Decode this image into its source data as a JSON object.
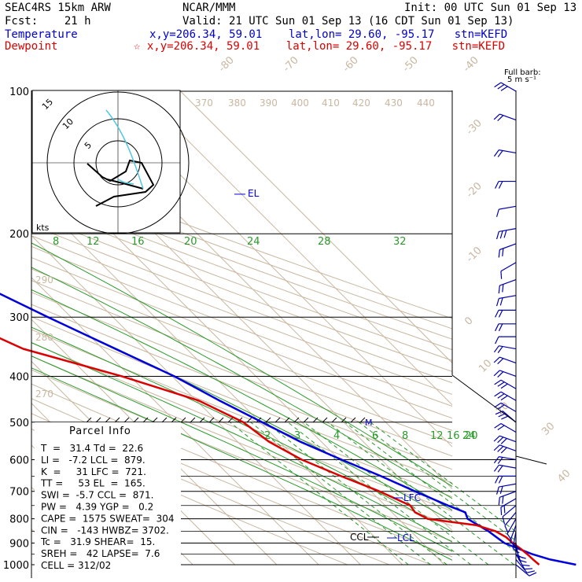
{
  "header": {
    "model": "SEAC4RS 15km ARW",
    "center": "NCAR/MMM",
    "init": "Init: 00 UTC Sun 01 Sep 13",
    "fcst": "Fcst:    21 h",
    "valid": "Valid: 21 UTC Sun 01 Sep 13 (16 CDT Sun 01 Sep 13)",
    "temperature_label": "Temperature",
    "temperature_info": "x,y=206.34, 59.01    lat,lon= 29.60, -95.17   stn=KEFD",
    "dewpoint_label": "Dewpoint",
    "dewpoint_info": "☆ x,y=206.34, 59.01    lat,lon= 29.60, -95.17   stn=KEFD"
  },
  "barb_legend": {
    "line1": "Full barb:",
    "line2": "5 m s⁻¹"
  },
  "hodograph": {
    "units": "kts",
    "ring_labels": [
      "5",
      "10",
      "15"
    ]
  },
  "parcel_info": {
    "title": "Parcel Info",
    "rows": [
      "T  =   31.4 Td =  22.6",
      "LI =   -7.2 LCL =  879.",
      "K  =     31 LFC =  721.",
      "TT =     53 EL  =  165.",
      "SWI =  -5.7 CCL =  871.",
      "PW =   4.39 YGP =   0.2",
      "CAPE =  1575 SWEAT=  304",
      "CIN =   -143 HWBZ= 3702.",
      "Tc =   31.9 SHEAR=  15.",
      "SREH =   42 LAPSE=  7.6",
      "CELL = 312/02"
    ]
  },
  "chart_data": {
    "type": "line",
    "ylabel": "",
    "pressure_ticks": [
      "100",
      "200",
      "300",
      "400",
      "500",
      "600",
      "700",
      "800",
      "900",
      "1000"
    ],
    "isotherm_labels": [
      "-80",
      "-70",
      "-60",
      "-50",
      "-40",
      "-30",
      "-20",
      "-10",
      "0",
      "10",
      "20",
      "30",
      "40"
    ],
    "theta_labels": [
      "370",
      "380",
      "390",
      "400",
      "410",
      "420",
      "430",
      "440",
      "290",
      "280",
      "270"
    ],
    "mixing_ratio_labels_upper": [
      "8",
      "12",
      "16",
      "20",
      "24",
      "28",
      "32"
    ],
    "mixing_ratio_labels_lower": [
      "2",
      "3",
      "4",
      "6",
      "8",
      "12",
      "16",
      "20",
      "24"
    ],
    "annotations": [
      "EL",
      "LFC",
      "CCL",
      "LCL",
      "M"
    ],
    "series": [
      {
        "name": "Temperature",
        "color": "#0000dd",
        "points": [
          [
            1000,
            31.4
          ],
          [
            975,
            26.5
          ],
          [
            950,
            23.5
          ],
          [
            925,
            21.5
          ],
          [
            900,
            19.5
          ],
          [
            850,
            18.5
          ],
          [
            800,
            16.5
          ],
          [
            775,
            17.5
          ],
          [
            750,
            15.0
          ],
          [
            700,
            10.5
          ],
          [
            650,
            6.0
          ],
          [
            600,
            0.5
          ],
          [
            550,
            -5.0
          ],
          [
            500,
            -9.5
          ],
          [
            450,
            -14.5
          ],
          [
            400,
            -19.5
          ],
          [
            350,
            -27.0
          ],
          [
            300,
            -35.5
          ],
          [
            250,
            -45.0
          ],
          [
            200,
            -56.0
          ],
          [
            175,
            -63.0
          ],
          [
            165,
            -66.5
          ],
          [
            150,
            -70.0
          ],
          [
            125,
            -74.0
          ],
          [
            110,
            -73.0
          ],
          [
            100,
            -73.0
          ]
        ]
      },
      {
        "name": "Dewpoint",
        "color": "#dd0000",
        "points": [
          [
            1000,
            22.6
          ],
          [
            975,
            22.4
          ],
          [
            950,
            22.3
          ],
          [
            925,
            22.0
          ],
          [
            900,
            21.5
          ],
          [
            875,
            21.3
          ],
          [
            850,
            20.2
          ],
          [
            825,
            17.0
          ],
          [
            800,
            7.0
          ],
          [
            775,
            5.5
          ],
          [
            750,
            6.0
          ],
          [
            700,
            2.0
          ],
          [
            650,
            -3.5
          ],
          [
            600,
            -9.0
          ],
          [
            550,
            -12.5
          ],
          [
            500,
            -14.0
          ],
          [
            450,
            -19.5
          ],
          [
            400,
            -32.0
          ],
          [
            350,
            -49.0
          ],
          [
            300,
            -58.0
          ],
          [
            250,
            -57.0
          ],
          [
            225,
            -62.0
          ],
          [
            200,
            -70.0
          ],
          [
            175,
            -80.0
          ],
          [
            150,
            -83.5
          ],
          [
            125,
            -88.0
          ],
          [
            105,
            -93.0
          ],
          [
            100,
            -98.0
          ]
        ]
      }
    ]
  },
  "wind_profile": {
    "pressures": [
      100,
      115,
      135,
      155,
      175,
      195,
      210,
      230,
      250,
      270,
      290,
      310,
      330,
      350,
      375,
      400,
      425,
      450,
      475,
      500,
      525,
      550,
      575,
      600,
      625,
      650,
      675,
      700,
      725,
      750,
      775,
      800,
      825,
      850,
      875,
      900,
      925,
      950,
      975,
      1000
    ],
    "speeds_ms": [
      15,
      12,
      10,
      10,
      5,
      15,
      10,
      5,
      10,
      10,
      10,
      10,
      5,
      10,
      10,
      10,
      15,
      15,
      10,
      15,
      10,
      15,
      15,
      10,
      10,
      10,
      10,
      10,
      10,
      5,
      5,
      5,
      5,
      10,
      5,
      10,
      5,
      5,
      5,
      5
    ],
    "dirs_deg": [
      300,
      290,
      280,
      270,
      260,
      260,
      250,
      240,
      250,
      260,
      270,
      270,
      270,
      280,
      290,
      290,
      300,
      300,
      300,
      310,
      300,
      290,
      290,
      280,
      280,
      270,
      260,
      250,
      240,
      230,
      220,
      210,
      200,
      190,
      180,
      170,
      160,
      150,
      140,
      130
    ]
  }
}
